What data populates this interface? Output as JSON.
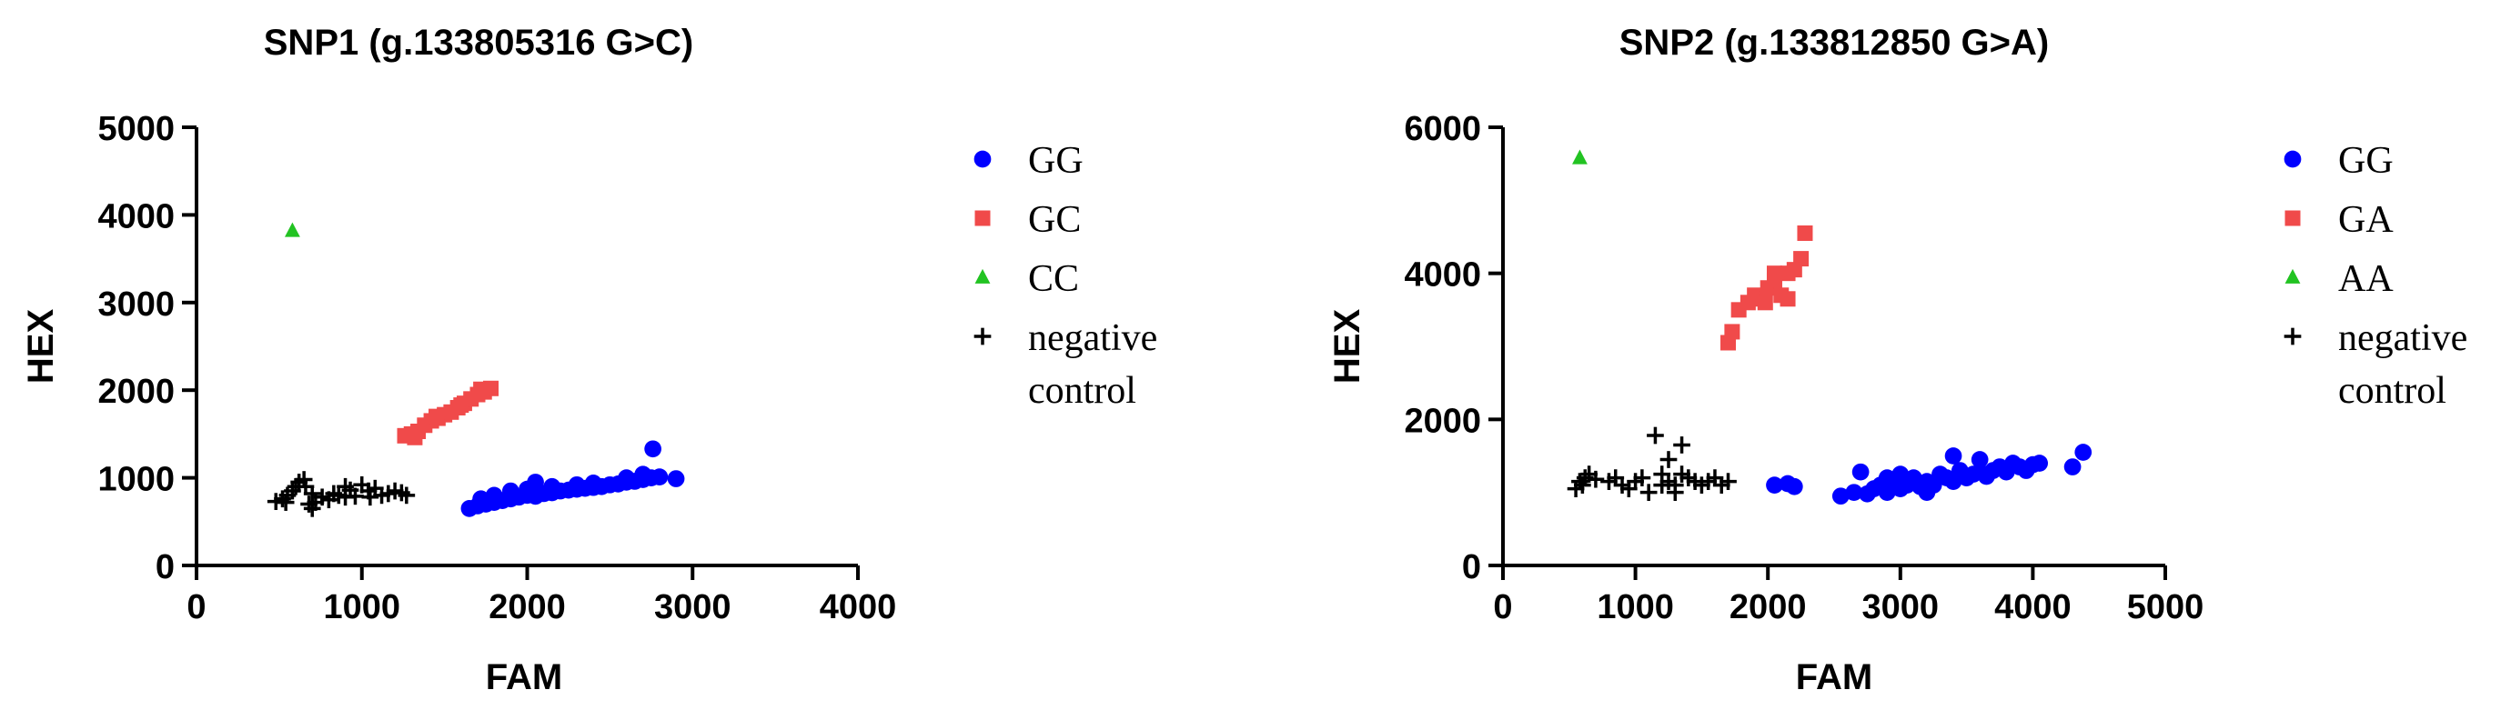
{
  "chart_data": [
    {
      "type": "scatter",
      "title": "SNP1 (g.133805316 G>C)",
      "xlabel": "FAM",
      "ylabel": "HEX",
      "xlim": [
        0,
        4000
      ],
      "ylim": [
        0,
        5000
      ],
      "xticks": [
        "0",
        "1000",
        "2000",
        "3000",
        "4000"
      ],
      "yticks": [
        "0",
        "1000",
        "2000",
        "3000",
        "4000",
        "5000"
      ],
      "legend_position": "right",
      "series": [
        {
          "name": "GG",
          "color": "#0000ff",
          "marker": "circle",
          "points": [
            [
              1650,
              650
            ],
            [
              1700,
              680
            ],
            [
              1750,
              700
            ],
            [
              1800,
              720
            ],
            [
              1850,
              740
            ],
            [
              1900,
              760
            ],
            [
              1950,
              780
            ],
            [
              2000,
              800
            ],
            [
              2050,
              790
            ],
            [
              2100,
              820
            ],
            [
              2150,
              830
            ],
            [
              2200,
              850
            ],
            [
              2250,
              860
            ],
            [
              2300,
              870
            ],
            [
              2350,
              880
            ],
            [
              2400,
              890
            ],
            [
              2450,
              900
            ],
            [
              2500,
              920
            ],
            [
              2550,
              930
            ],
            [
              2600,
              950
            ],
            [
              2650,
              960
            ],
            [
              2700,
              980
            ],
            [
              2750,
              1000
            ],
            [
              2800,
              1010
            ],
            [
              2900,
              990
            ],
            [
              2760,
              1330
            ],
            [
              1720,
              760
            ],
            [
              1800,
              800
            ],
            [
              1900,
              850
            ],
            [
              2000,
              870
            ],
            [
              2050,
              950
            ],
            [
              2150,
              900
            ],
            [
              2300,
              920
            ],
            [
              2400,
              940
            ],
            [
              2600,
              1000
            ],
            [
              2700,
              1040
            ]
          ]
        },
        {
          "name": "GC",
          "color": "#f04a4a",
          "marker": "square",
          "points": [
            [
              1260,
              1480
            ],
            [
              1300,
              1500
            ],
            [
              1340,
              1530
            ],
            [
              1380,
              1600
            ],
            [
              1420,
              1650
            ],
            [
              1460,
              1680
            ],
            [
              1500,
              1720
            ],
            [
              1540,
              1750
            ],
            [
              1580,
              1800
            ],
            [
              1620,
              1850
            ],
            [
              1660,
              1900
            ],
            [
              1700,
              1950
            ],
            [
              1740,
              1980
            ],
            [
              1780,
              2020
            ],
            [
              1320,
              1460
            ],
            [
              1450,
              1700
            ],
            [
              1600,
              1830
            ],
            [
              1720,
              2010
            ]
          ]
        },
        {
          "name": "CC",
          "color": "#22c322",
          "marker": "triangle",
          "points": [
            [
              580,
              3820
            ]
          ]
        },
        {
          "name": "negative control",
          "color": "#000000",
          "marker": "plus",
          "points": [
            [
              480,
              730
            ],
            [
              520,
              760
            ],
            [
              550,
              800
            ],
            [
              580,
              850
            ],
            [
              600,
              900
            ],
            [
              620,
              950
            ],
            [
              650,
              980
            ],
            [
              680,
              700
            ],
            [
              700,
              650
            ],
            [
              720,
              720
            ],
            [
              760,
              780
            ],
            [
              800,
              750
            ],
            [
              830,
              820
            ],
            [
              860,
              800
            ],
            [
              900,
              900
            ],
            [
              930,
              860
            ],
            [
              960,
              790
            ],
            [
              1000,
              920
            ],
            [
              1040,
              850
            ],
            [
              1080,
              880
            ],
            [
              1120,
              800
            ],
            [
              1160,
              820
            ],
            [
              1200,
              850
            ],
            [
              1240,
              830
            ],
            [
              1270,
              800
            ],
            [
              540,
              720
            ],
            [
              660,
              900
            ],
            [
              900,
              780
            ],
            [
              1050,
              780
            ],
            [
              700,
              820
            ]
          ]
        }
      ]
    },
    {
      "type": "scatter",
      "title": "SNP2 (g.133812850 G>A)",
      "xlabel": "FAM",
      "ylabel": "HEX",
      "xlim": [
        0,
        5000
      ],
      "ylim": [
        0,
        6000
      ],
      "xticks": [
        "0",
        "1000",
        "2000",
        "3000",
        "4000",
        "5000"
      ],
      "yticks": [
        "0",
        "2000",
        "4000",
        "6000"
      ],
      "legend_position": "right",
      "series": [
        {
          "name": "GG",
          "color": "#0000ff",
          "marker": "circle",
          "points": [
            [
              2050,
              1100
            ],
            [
              2150,
              1120
            ],
            [
              2200,
              1080
            ],
            [
              2550,
              950
            ],
            [
              2650,
              1000
            ],
            [
              2700,
              1280
            ],
            [
              2750,
              980
            ],
            [
              2800,
              1050
            ],
            [
              2850,
              1100
            ],
            [
              2900,
              1000
            ],
            [
              2950,
              1150
            ],
            [
              3000,
              1050
            ],
            [
              3050,
              1100
            ],
            [
              3100,
              1200
            ],
            [
              3150,
              1080
            ],
            [
              3200,
              1150
            ],
            [
              3250,
              1100
            ],
            [
              3300,
              1250
            ],
            [
              3350,
              1200
            ],
            [
              3400,
              1150
            ],
            [
              3450,
              1300
            ],
            [
              3500,
              1200
            ],
            [
              3550,
              1250
            ],
            [
              3600,
              1280
            ],
            [
              3650,
              1220
            ],
            [
              3700,
              1300
            ],
            [
              3750,
              1350
            ],
            [
              3800,
              1280
            ],
            [
              3850,
              1400
            ],
            [
              3900,
              1350
            ],
            [
              3950,
              1300
            ],
            [
              4000,
              1380
            ],
            [
              4050,
              1400
            ],
            [
              4300,
              1350
            ],
            [
              4380,
              1550
            ],
            [
              3400,
              1500
            ],
            [
              3000,
              1250
            ],
            [
              3200,
              1000
            ],
            [
              3600,
              1450
            ],
            [
              2900,
              1200
            ]
          ]
        },
        {
          "name": "GA",
          "color": "#f04a4a",
          "marker": "square",
          "points": [
            [
              1700,
              3050
            ],
            [
              1730,
              3200
            ],
            [
              1780,
              3500
            ],
            [
              1850,
              3600
            ],
            [
              1900,
              3700
            ],
            [
              1950,
              3650
            ],
            [
              2000,
              3800
            ],
            [
              2050,
              3900
            ],
            [
              2100,
              3700
            ],
            [
              2150,
              4000
            ],
            [
              2200,
              4050
            ],
            [
              2250,
              4200
            ],
            [
              2280,
              4550
            ],
            [
              2050,
              4000
            ],
            [
              2150,
              3650
            ],
            [
              1980,
              3600
            ]
          ]
        },
        {
          "name": "AA",
          "color": "#22c322",
          "marker": "triangle",
          "points": [
            [
              580,
              5580
            ]
          ]
        },
        {
          "name": "negative control",
          "color": "#000000",
          "marker": "plus",
          "points": [
            [
              550,
              1050
            ],
            [
              580,
              1150
            ],
            [
              600,
              1100
            ],
            [
              620,
              1200
            ],
            [
              650,
              1250
            ],
            [
              700,
              1180
            ],
            [
              800,
              1150
            ],
            [
              850,
              1200
            ],
            [
              900,
              1100
            ],
            [
              950,
              1050
            ],
            [
              1000,
              1150
            ],
            [
              1050,
              1200
            ],
            [
              1100,
              1000
            ],
            [
              1150,
              1780
            ],
            [
              1200,
              1100
            ],
            [
              1250,
              1450
            ],
            [
              1300,
              1100
            ],
            [
              1350,
              1650
            ],
            [
              1400,
              1200
            ],
            [
              1450,
              1150
            ],
            [
              1500,
              1100
            ],
            [
              1550,
              1150
            ],
            [
              1600,
              1200
            ],
            [
              1650,
              1100
            ],
            [
              1700,
              1150
            ],
            [
              1250,
              1150
            ],
            [
              1350,
              1250
            ],
            [
              1200,
              1250
            ],
            [
              1300,
              1000
            ]
          ]
        }
      ]
    }
  ]
}
